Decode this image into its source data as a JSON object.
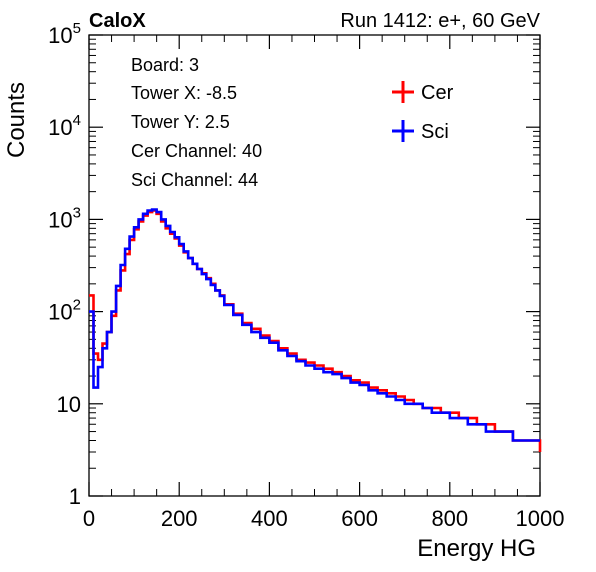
{
  "header": {
    "left": "CaloX",
    "right": "Run 1412: e+, 60 GeV"
  },
  "info_box": {
    "lines": [
      "Board: 3",
      "Tower X: -8.5",
      "Tower Y: 2.5",
      "Cer Channel: 40",
      "Sci Channel: 44"
    ]
  },
  "chart_data": {
    "type": "line",
    "xlabel": "Energy HG",
    "ylabel": "Counts",
    "xlim": [
      0,
      1000
    ],
    "ylim": [
      1,
      100000
    ],
    "yscale": "log",
    "x_ticks": [
      "0",
      "200",
      "400",
      "600",
      "800",
      "1000"
    ],
    "y_ticks": [
      {
        "value": 1,
        "base": "1",
        "exp": ""
      },
      {
        "value": 10,
        "base": "10",
        "exp": ""
      },
      {
        "value": 100,
        "base": "10",
        "exp": "2"
      },
      {
        "value": 1000,
        "base": "10",
        "exp": "3"
      },
      {
        "value": 10000,
        "base": "10",
        "exp": "4"
      },
      {
        "value": 100000,
        "base": "10",
        "exp": "5"
      }
    ],
    "legend_position": "top-right",
    "x": [
      0,
      10,
      20,
      30,
      40,
      50,
      60,
      70,
      80,
      90,
      100,
      110,
      120,
      130,
      140,
      150,
      160,
      170,
      180,
      190,
      200,
      210,
      220,
      230,
      240,
      250,
      260,
      270,
      280,
      290,
      300,
      320,
      340,
      360,
      380,
      400,
      420,
      440,
      460,
      480,
      500,
      520,
      540,
      560,
      580,
      600,
      620,
      640,
      660,
      680,
      700,
      720,
      740,
      760,
      780,
      800,
      820,
      840,
      860,
      880,
      900,
      920,
      940,
      960,
      980,
      1000
    ],
    "series": [
      {
        "name": "Cer",
        "color": "#ff0000",
        "values": [
          150,
          35,
          30,
          45,
          60,
          90,
          170,
          280,
          420,
          600,
          780,
          950,
          1100,
          1200,
          1250,
          1150,
          950,
          800,
          700,
          620,
          520,
          440,
          380,
          330,
          290,
          260,
          230,
          200,
          170,
          150,
          120,
          95,
          75,
          65,
          55,
          48,
          40,
          35,
          30,
          28,
          26,
          24,
          22,
          20,
          18,
          17,
          15,
          14,
          13,
          12,
          11,
          10,
          9,
          9,
          8,
          8,
          7,
          7,
          6,
          6,
          5,
          5,
          4,
          4,
          4,
          3
        ]
      },
      {
        "name": "Sci",
        "color": "#0000ff",
        "values": [
          100,
          15,
          25,
          40,
          60,
          100,
          190,
          320,
          480,
          650,
          820,
          1000,
          1150,
          1250,
          1280,
          1200,
          1000,
          850,
          730,
          640,
          540,
          450,
          380,
          330,
          290,
          255,
          225,
          195,
          170,
          148,
          118,
          92,
          72,
          60,
          52,
          46,
          38,
          33,
          29,
          26,
          24,
          22,
          21,
          19,
          17,
          16,
          14,
          13,
          12,
          11,
          10,
          10,
          9,
          8,
          8,
          7,
          7,
          6,
          6,
          5,
          5,
          5,
          4,
          4,
          4,
          4
        ]
      }
    ]
  }
}
